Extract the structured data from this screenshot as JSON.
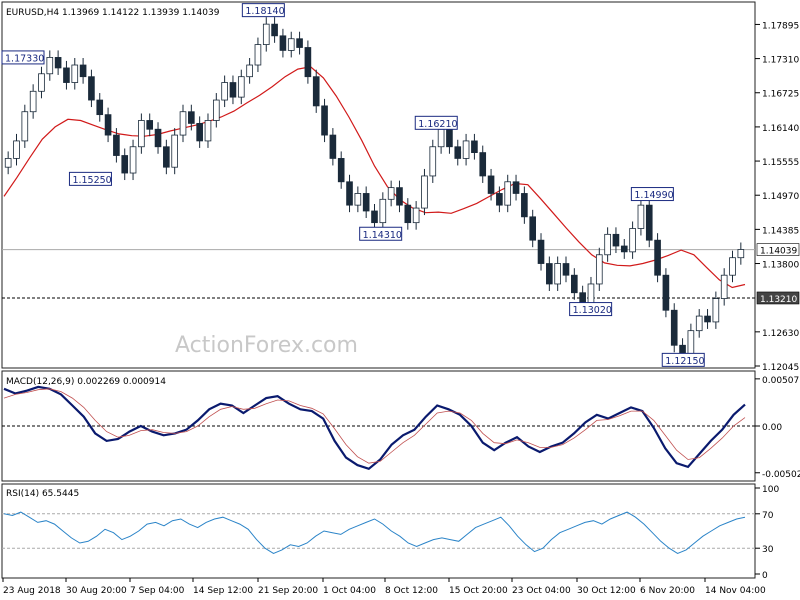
{
  "chart_data": [
    {
      "type": "candlestick",
      "title": "EURUSD,H4  1.13969 1.14122 1.13939 1.14039",
      "watermark": "ActionForex.com",
      "ylim": [
        1.12045,
        1.18245
      ],
      "y_ticks": [
        "1.17895",
        "1.17310",
        "1.16725",
        "1.16140",
        "1.15555",
        "1.14970",
        "1.14385",
        "1.13800",
        "1.12630",
        "1.12045"
      ],
      "current_price": "1.14039",
      "support_level": "1.13210",
      "moving_average": [
        1.1495,
        1.1527,
        1.1561,
        1.1593,
        1.1614,
        1.1627,
        1.1625,
        1.1617,
        1.1609,
        1.1602,
        1.1599,
        1.1598,
        1.1601,
        1.1607,
        1.1612,
        1.1617,
        1.1623,
        1.1631,
        1.1641,
        1.1655,
        1.1668,
        1.1683,
        1.17,
        1.1713,
        1.1717,
        1.1698,
        1.1667,
        1.1631,
        1.1591,
        1.1547,
        1.1512,
        1.1489,
        1.1475,
        1.1467,
        1.1468,
        1.1466,
        1.1474,
        1.1483,
        1.1495,
        1.1507,
        1.1517,
        1.1515,
        1.1491,
        1.1466,
        1.1441,
        1.1417,
        1.1395,
        1.1381,
        1.1377,
        1.1376,
        1.138,
        1.1386,
        1.1394,
        1.1403,
        1.1395,
        1.1373,
        1.1352,
        1.1339,
        1.1344
      ],
      "price_annotations": [
        {
          "label": "1.17330",
          "x": 0,
          "y": 1.1733
        },
        {
          "label": "1.18140",
          "x": 4.2,
          "y": 1.1814
        },
        {
          "label": "1.15250",
          "x": 1.4,
          "y": 1.1525
        },
        {
          "label": "1.14310",
          "x": 6.1,
          "y": 1.1431
        },
        {
          "label": "1.16210",
          "x": 7.0,
          "y": 1.1621
        },
        {
          "label": "1.13020",
          "x": 9.5,
          "y": 1.1302
        },
        {
          "label": "1.14990",
          "x": 10.5,
          "y": 1.1499
        },
        {
          "label": "1.12150",
          "x": 11.0,
          "y": 1.1215
        }
      ],
      "x_labels": [
        "23 Aug 2018",
        "30 Aug 20:00",
        "7 Sep 04:00",
        "14 Sep 12:00",
        "21 Sep 20:00",
        "1 Oct 04:00",
        "8 Oct 12:00",
        "15 Oct 20:00",
        "23 Oct 04:00",
        "30 Oct 12:00",
        "6 Nov 20:00",
        "14 Nov 04:00"
      ],
      "candles": [
        [
          1.1545,
          1.156
        ],
        [
          1.156,
          1.159
        ],
        [
          1.159,
          1.164
        ],
        [
          1.164,
          1.1675
        ],
        [
          1.1675,
          1.1705
        ],
        [
          1.1705,
          1.1733
        ],
        [
          1.1733,
          1.1715
        ],
        [
          1.1715,
          1.169
        ],
        [
          1.169,
          1.172
        ],
        [
          1.172,
          1.17
        ],
        [
          1.17,
          1.166
        ],
        [
          1.166,
          1.1635
        ],
        [
          1.1635,
          1.16
        ],
        [
          1.16,
          1.1565
        ],
        [
          1.1565,
          1.1535
        ],
        [
          1.1535,
          1.158
        ],
        [
          1.158,
          1.1625
        ],
        [
          1.1625,
          1.161
        ],
        [
          1.161,
          1.158
        ],
        [
          1.158,
          1.1545
        ],
        [
          1.1545,
          1.16
        ],
        [
          1.16,
          1.164
        ],
        [
          1.164,
          1.162
        ],
        [
          1.162,
          1.159
        ],
        [
          1.159,
          1.1625
        ],
        [
          1.1625,
          1.166
        ],
        [
          1.166,
          1.169
        ],
        [
          1.169,
          1.1665
        ],
        [
          1.1665,
          1.17
        ],
        [
          1.17,
          1.172
        ],
        [
          1.172,
          1.1755
        ],
        [
          1.1755,
          1.179
        ],
        [
          1.179,
          1.177
        ],
        [
          1.177,
          1.1745
        ],
        [
          1.1745,
          1.1765
        ],
        [
          1.1765,
          1.175
        ],
        [
          1.175,
          1.17
        ],
        [
          1.17,
          1.165
        ],
        [
          1.165,
          1.16
        ],
        [
          1.16,
          1.156
        ],
        [
          1.156,
          1.152
        ],
        [
          1.152,
          1.148
        ],
        [
          1.148,
          1.15
        ],
        [
          1.15,
          1.147
        ],
        [
          1.147,
          1.145
        ],
        [
          1.145,
          1.149
        ],
        [
          1.149,
          1.151
        ],
        [
          1.151,
          1.148
        ],
        [
          1.148,
          1.145
        ],
        [
          1.145,
          1.1475
        ],
        [
          1.1475,
          1.153
        ],
        [
          1.153,
          1.158
        ],
        [
          1.158,
          1.161
        ],
        [
          1.161,
          1.158
        ],
        [
          1.158,
          1.156
        ],
        [
          1.156,
          1.159
        ],
        [
          1.159,
          1.157
        ],
        [
          1.157,
          1.153
        ],
        [
          1.153,
          1.15
        ],
        [
          1.15,
          1.148
        ],
        [
          1.148,
          1.152
        ],
        [
          1.152,
          1.15
        ],
        [
          1.15,
          1.146
        ],
        [
          1.146,
          1.142
        ],
        [
          1.142,
          1.138
        ],
        [
          1.138,
          1.1345
        ],
        [
          1.1345,
          1.138
        ],
        [
          1.138,
          1.136
        ],
        [
          1.136,
          1.133
        ],
        [
          1.133,
          1.131
        ],
        [
          1.131,
          1.1345
        ],
        [
          1.1345,
          1.1395
        ],
        [
          1.1395,
          1.143
        ],
        [
          1.143,
          1.141
        ],
        [
          1.141,
          1.14
        ],
        [
          1.14,
          1.144
        ],
        [
          1.144,
          1.148
        ],
        [
          1.148,
          1.142
        ],
        [
          1.142,
          1.136
        ],
        [
          1.136,
          1.13
        ],
        [
          1.13,
          1.124
        ],
        [
          1.124,
          1.1225
        ],
        [
          1.1225,
          1.1265
        ],
        [
          1.1265,
          1.129
        ],
        [
          1.129,
          1.128
        ],
        [
          1.128,
          1.132
        ],
        [
          1.132,
          1.136
        ],
        [
          1.136,
          1.139
        ],
        [
          1.139,
          1.1404
        ]
      ]
    },
    {
      "type": "line",
      "title": "MACD(12,26,9) 0.002269 0.000914",
      "ylim": [
        -0.0057,
        0.0057
      ],
      "y_ticks": [
        "0.00507",
        "0.00",
        "-0.005029"
      ],
      "zero_line": 0.0,
      "series": [
        {
          "values": [
            0.004,
            0.0035,
            0.0038,
            0.0042,
            0.004,
            0.0034,
            0.0022,
            0.001,
            -0.0008,
            -0.0016,
            -0.0014,
            -0.0006,
            0.0,
            -0.0006,
            -0.001,
            -0.0008,
            -0.0004,
            0.0006,
            0.0018,
            0.0024,
            0.0022,
            0.0014,
            0.0022,
            0.003,
            0.0032,
            0.0024,
            0.0018,
            0.0016,
            0.0008,
            -0.0016,
            -0.0034,
            -0.0042,
            -0.0046,
            -0.0036,
            -0.002,
            -0.001,
            -0.0004,
            0.001,
            0.0022,
            0.0018,
            0.0012,
            0.0,
            -0.0018,
            -0.0026,
            -0.0018,
            -0.0012,
            -0.0022,
            -0.0028,
            -0.0022,
            -0.0018,
            -0.0008,
            0.0004,
            0.0012,
            0.0008,
            0.0014,
            0.002,
            0.0016,
            -0.0002,
            -0.0024,
            -0.004,
            -0.0044,
            -0.003,
            -0.0016,
            -0.0004,
            0.0012,
            0.0023
          ]
        },
        {
          "values": [
            0.003,
            0.0034,
            0.0036,
            0.0039,
            0.004,
            0.0037,
            0.003,
            0.002,
            0.0006,
            -0.0006,
            -0.0012,
            -0.001,
            -0.0005,
            -0.0004,
            -0.0007,
            -0.0008,
            -0.0006,
            0.0,
            0.001,
            0.0018,
            0.0021,
            0.0018,
            0.0019,
            0.0024,
            0.0028,
            0.0027,
            0.0022,
            0.0019,
            0.0013,
            -0.0003,
            -0.002,
            -0.0033,
            -0.004,
            -0.0038,
            -0.0028,
            -0.0018,
            -0.001,
            0.0002,
            0.0014,
            0.0016,
            0.0014,
            0.0006,
            -0.0008,
            -0.0018,
            -0.0019,
            -0.0015,
            -0.0018,
            -0.0023,
            -0.0023,
            -0.002,
            -0.0013,
            -0.0004,
            0.0006,
            0.0007,
            0.0011,
            0.0016,
            0.0016,
            0.0006,
            -0.001,
            -0.0026,
            -0.0036,
            -0.0034,
            -0.0024,
            -0.0013,
            0.0,
            0.0009
          ]
        }
      ]
    },
    {
      "type": "line",
      "title": "RSI(14) 65.5445",
      "ylim": [
        0,
        100
      ],
      "y_ticks": [
        "100",
        "70",
        "30",
        "0"
      ],
      "reference_lines": [
        70,
        30
      ],
      "series": [
        {
          "values": [
            70,
            68,
            72,
            66,
            60,
            62,
            58,
            50,
            42,
            36,
            38,
            44,
            52,
            48,
            40,
            44,
            50,
            58,
            60,
            56,
            62,
            64,
            58,
            54,
            60,
            64,
            66,
            62,
            58,
            52,
            40,
            30,
            24,
            28,
            34,
            32,
            36,
            44,
            50,
            48,
            46,
            52,
            56,
            60,
            64,
            58,
            50,
            44,
            36,
            32,
            36,
            40,
            42,
            40,
            38,
            46,
            54,
            58,
            62,
            66,
            56,
            44,
            34,
            26,
            30,
            40,
            48,
            52,
            56,
            60,
            62,
            58,
            64,
            68,
            72,
            66,
            58,
            48,
            38,
            30,
            24,
            28,
            36,
            44,
            50,
            56,
            60,
            64,
            66
          ]
        }
      ]
    }
  ]
}
